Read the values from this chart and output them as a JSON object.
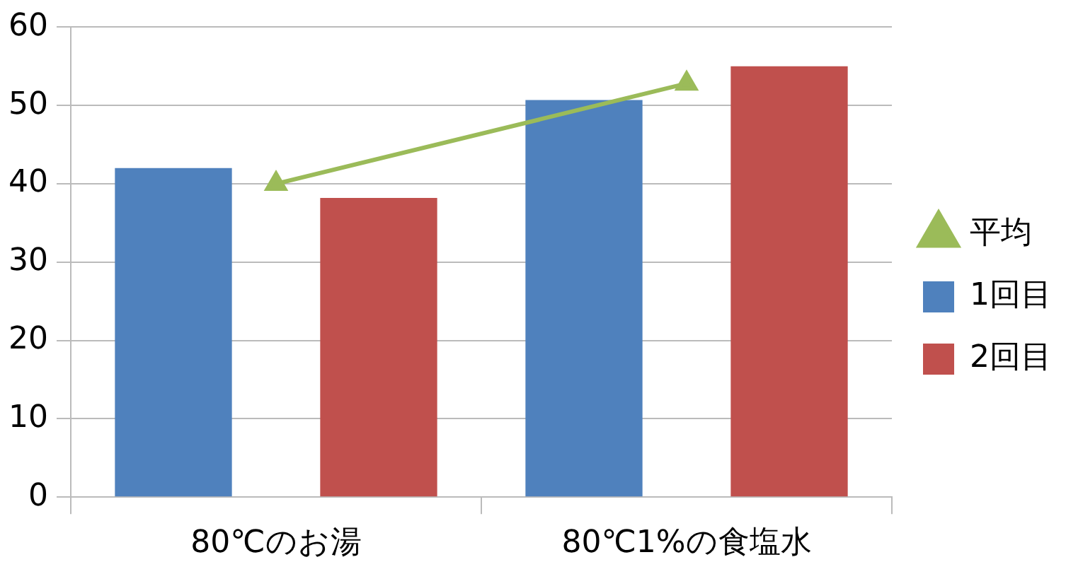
{
  "chart_data": {
    "type": "bar",
    "categories": [
      "80℃のお湯",
      "80℃1%の食塩水"
    ],
    "series": [
      {
        "name": "1回目",
        "color": "#4f81bd",
        "values": [
          42,
          50.7
        ]
      },
      {
        "name": "2回目",
        "color": "#c0504d",
        "values": [
          38.2,
          55
        ]
      },
      {
        "name": "平均",
        "type": "line",
        "color": "#9bbb59",
        "values": [
          40,
          52.8
        ],
        "marker": "triangle"
      }
    ],
    "ylim": [
      0,
      60
    ],
    "yticks": [
      0,
      10,
      20,
      30,
      40,
      50,
      60
    ],
    "grid": "y",
    "legend": "right"
  }
}
